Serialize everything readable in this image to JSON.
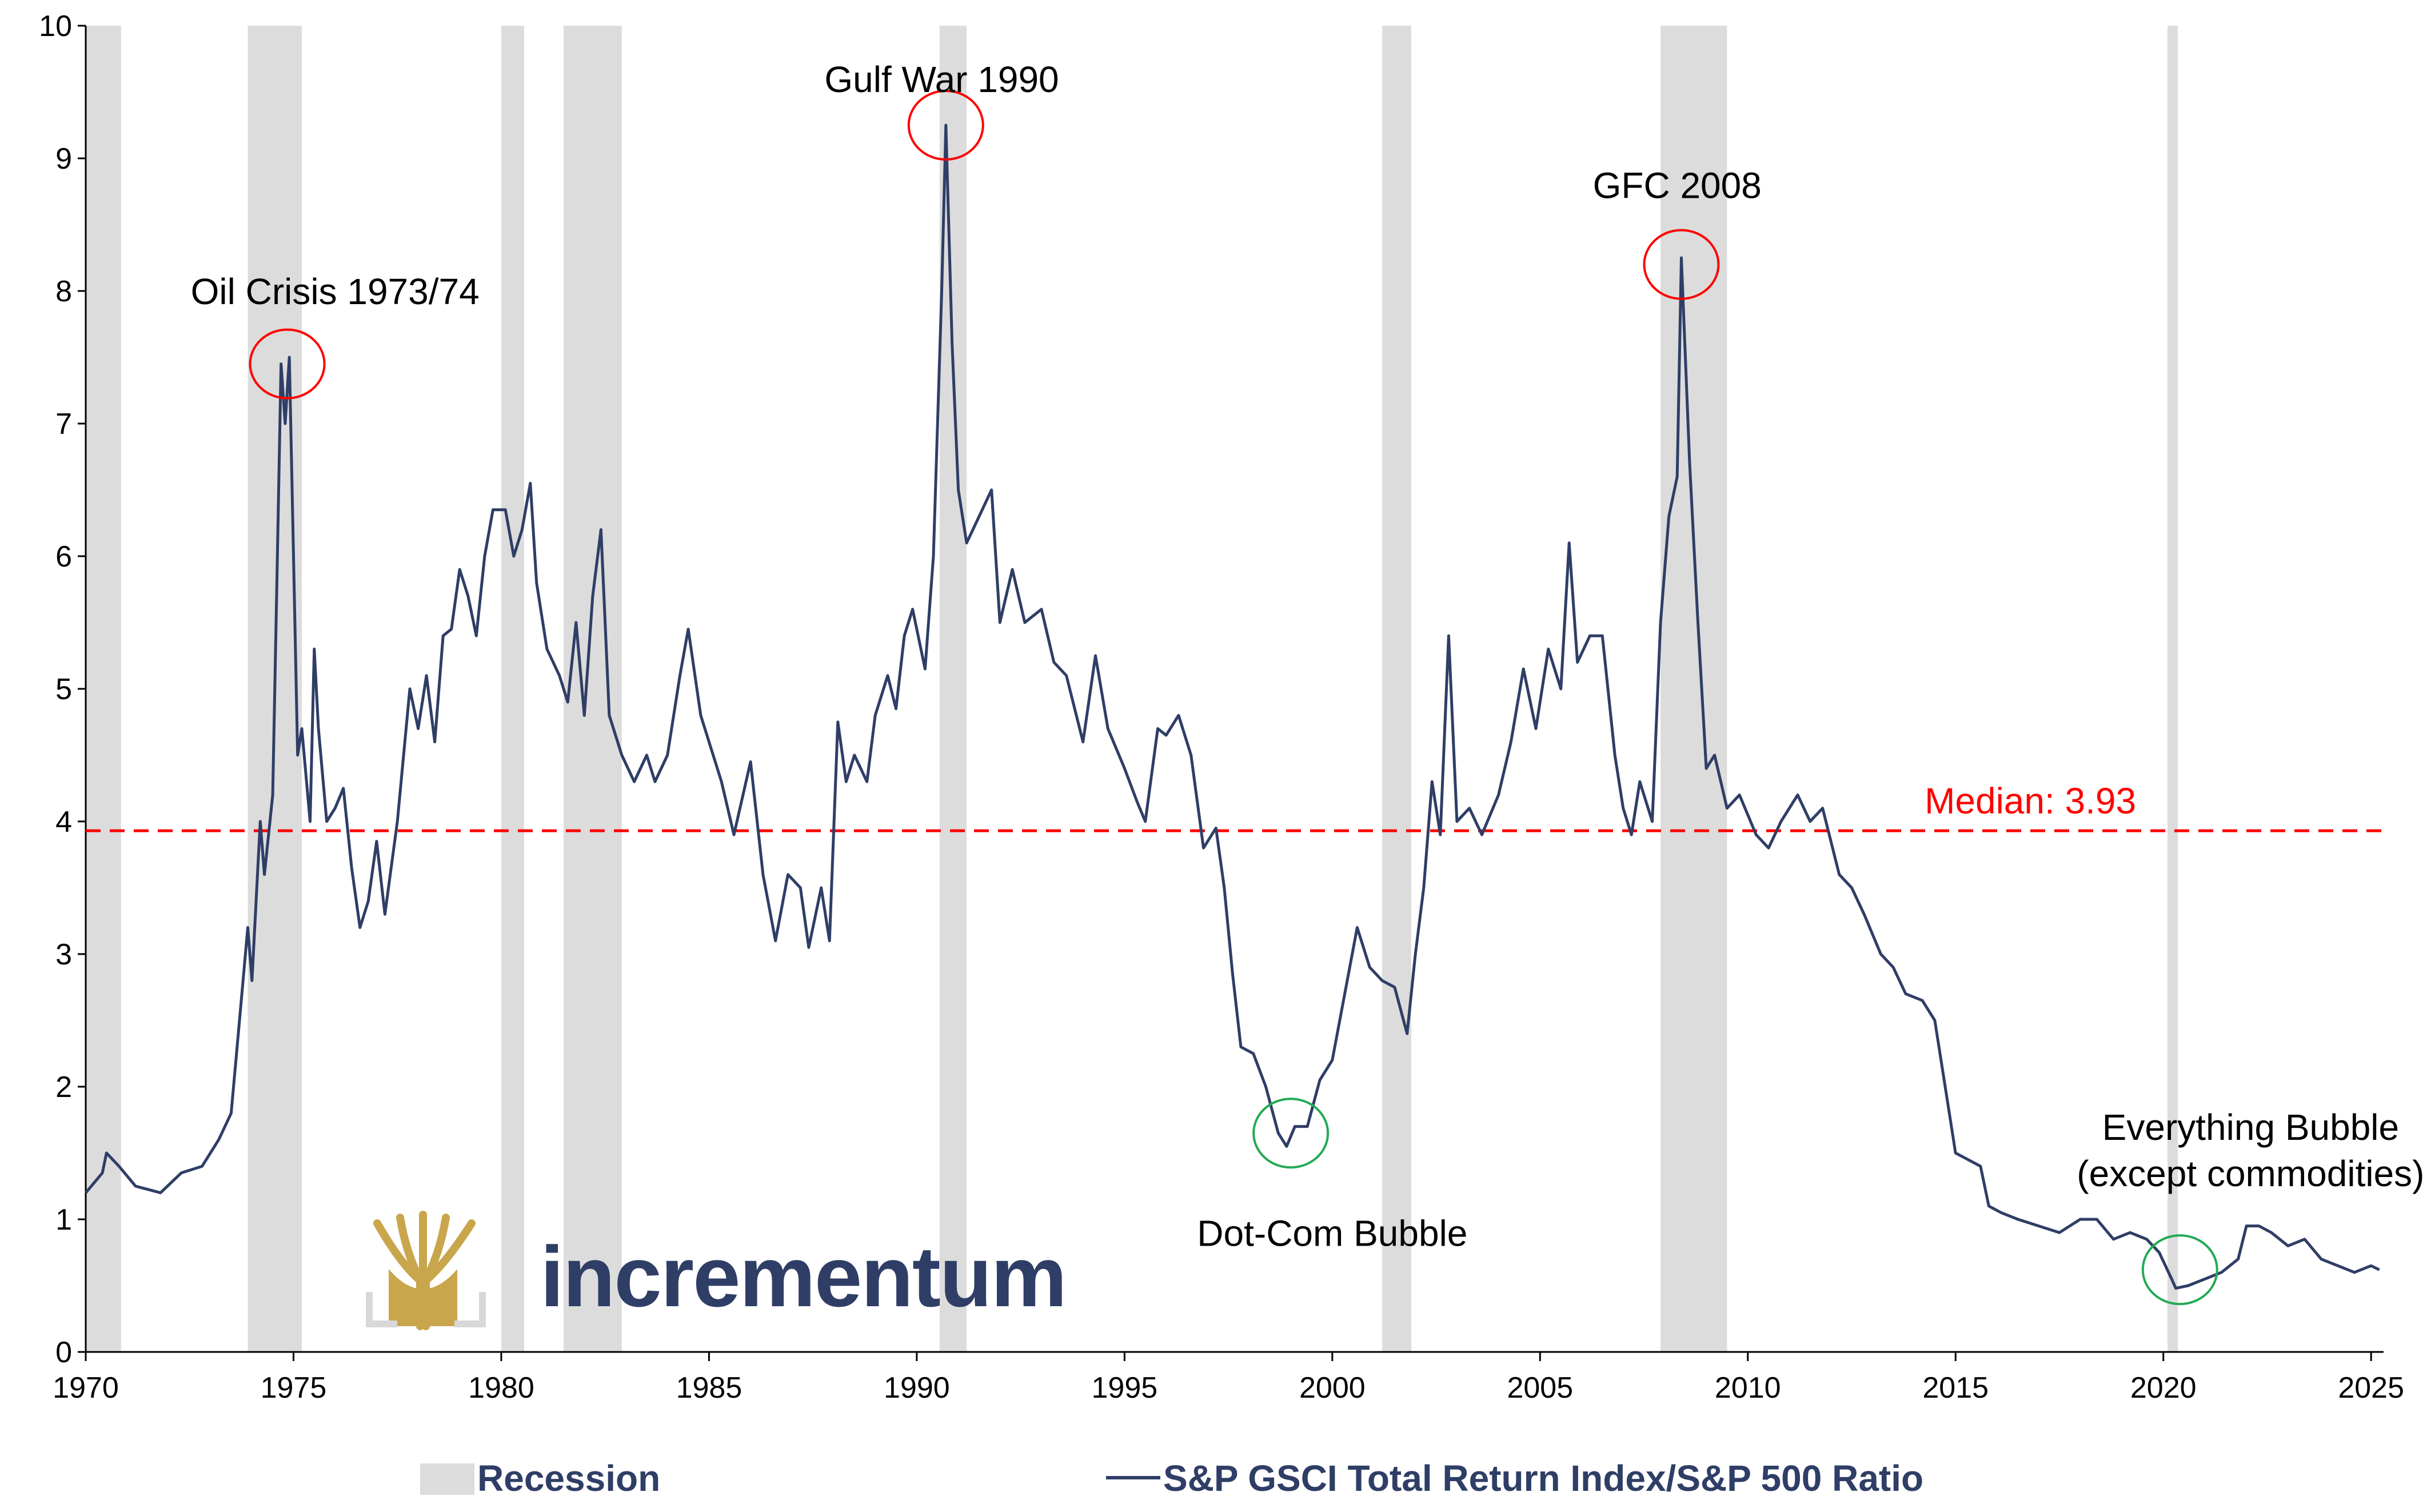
{
  "chart_data": {
    "type": "line",
    "title": "",
    "xlabel": "",
    "ylabel": "",
    "xlim": [
      1970,
      2025.3
    ],
    "ylim": [
      0,
      10
    ],
    "x_ticks": [
      "1970",
      "1975",
      "1980",
      "1985",
      "1990",
      "1995",
      "2000",
      "2005",
      "2010",
      "2015",
      "2020",
      "2025"
    ],
    "y_ticks": [
      "0",
      "1",
      "2",
      "3",
      "4",
      "5",
      "6",
      "7",
      "8",
      "9",
      "10"
    ],
    "grid": false,
    "colors": {
      "line": "#2f3e66",
      "median": "#ff0000",
      "recession": "#dcdcdc",
      "peak_circle": "#ff0000",
      "trough_circle": "#22aa55",
      "logo_gold": "#c9a64b"
    },
    "recessions": [
      [
        1970.0,
        1970.85
      ],
      [
        1973.9,
        1975.2
      ],
      [
        1980.0,
        1980.55
      ],
      [
        1981.5,
        1982.9
      ],
      [
        1990.55,
        1991.2
      ],
      [
        2001.2,
        2001.9
      ],
      [
        2007.9,
        2009.5
      ],
      [
        2020.1,
        2020.35
      ]
    ],
    "series": [
      {
        "name": "S&P GSCI Total Return Index/S&P 500 Ratio",
        "points": [
          [
            1970.0,
            1.2
          ],
          [
            1970.4,
            1.35
          ],
          [
            1970.5,
            1.5
          ],
          [
            1970.8,
            1.4
          ],
          [
            1971.2,
            1.25
          ],
          [
            1971.8,
            1.2
          ],
          [
            1972.3,
            1.35
          ],
          [
            1972.8,
            1.4
          ],
          [
            1973.2,
            1.6
          ],
          [
            1973.5,
            1.8
          ],
          [
            1973.7,
            2.5
          ],
          [
            1973.9,
            3.2
          ],
          [
            1974.0,
            2.8
          ],
          [
            1974.2,
            4.0
          ],
          [
            1974.3,
            3.6
          ],
          [
            1974.5,
            4.2
          ],
          [
            1974.6,
            5.8
          ],
          [
            1974.7,
            7.45
          ],
          [
            1974.8,
            7.0
          ],
          [
            1974.9,
            7.5
          ],
          [
            1975.0,
            6.0
          ],
          [
            1975.1,
            4.5
          ],
          [
            1975.2,
            4.7
          ],
          [
            1975.4,
            4.0
          ],
          [
            1975.5,
            5.3
          ],
          [
            1975.6,
            4.7
          ],
          [
            1975.8,
            4.0
          ],
          [
            1976.0,
            4.1
          ],
          [
            1976.2,
            4.25
          ],
          [
            1976.4,
            3.65
          ],
          [
            1976.6,
            3.2
          ],
          [
            1976.8,
            3.4
          ],
          [
            1977.0,
            3.85
          ],
          [
            1977.2,
            3.3
          ],
          [
            1977.5,
            4.0
          ],
          [
            1977.8,
            5.0
          ],
          [
            1978.0,
            4.7
          ],
          [
            1978.2,
            5.1
          ],
          [
            1978.4,
            4.6
          ],
          [
            1978.6,
            5.4
          ],
          [
            1978.8,
            5.45
          ],
          [
            1979.0,
            5.9
          ],
          [
            1979.2,
            5.7
          ],
          [
            1979.4,
            5.4
          ],
          [
            1979.6,
            6.0
          ],
          [
            1979.8,
            6.35
          ],
          [
            1980.1,
            6.35
          ],
          [
            1980.3,
            6.0
          ],
          [
            1980.5,
            6.2
          ],
          [
            1980.7,
            6.55
          ],
          [
            1980.85,
            5.8
          ],
          [
            1981.1,
            5.3
          ],
          [
            1981.4,
            5.1
          ],
          [
            1981.6,
            4.9
          ],
          [
            1981.8,
            5.5
          ],
          [
            1982.0,
            4.8
          ],
          [
            1982.2,
            5.7
          ],
          [
            1982.4,
            6.2
          ],
          [
            1982.6,
            4.8
          ],
          [
            1982.9,
            4.5
          ],
          [
            1983.2,
            4.3
          ],
          [
            1983.5,
            4.5
          ],
          [
            1983.7,
            4.3
          ],
          [
            1984.0,
            4.5
          ],
          [
            1984.3,
            5.1
          ],
          [
            1984.5,
            5.45
          ],
          [
            1984.8,
            4.8
          ],
          [
            1985.0,
            4.6
          ],
          [
            1985.3,
            4.3
          ],
          [
            1985.6,
            3.9
          ],
          [
            1986.0,
            4.45
          ],
          [
            1986.3,
            3.6
          ],
          [
            1986.6,
            3.1
          ],
          [
            1986.9,
            3.6
          ],
          [
            1987.2,
            3.5
          ],
          [
            1987.4,
            3.05
          ],
          [
            1987.7,
            3.5
          ],
          [
            1987.9,
            3.1
          ],
          [
            1988.1,
            4.75
          ],
          [
            1988.3,
            4.3
          ],
          [
            1988.5,
            4.5
          ],
          [
            1988.8,
            4.3
          ],
          [
            1989.0,
            4.8
          ],
          [
            1989.3,
            5.1
          ],
          [
            1989.5,
            4.85
          ],
          [
            1989.7,
            5.4
          ],
          [
            1989.9,
            5.6
          ],
          [
            1990.2,
            5.15
          ],
          [
            1990.4,
            6.0
          ],
          [
            1990.6,
            8.0
          ],
          [
            1990.7,
            9.25
          ],
          [
            1990.85,
            7.6
          ],
          [
            1991.0,
            6.5
          ],
          [
            1991.2,
            6.1
          ],
          [
            1991.5,
            6.3
          ],
          [
            1991.8,
            6.5
          ],
          [
            1992.0,
            5.5
          ],
          [
            1992.3,
            5.9
          ],
          [
            1992.6,
            5.5
          ],
          [
            1993.0,
            5.6
          ],
          [
            1993.3,
            5.2
          ],
          [
            1993.6,
            5.1
          ],
          [
            1994.0,
            4.6
          ],
          [
            1994.3,
            5.25
          ],
          [
            1994.6,
            4.7
          ],
          [
            1995.0,
            4.4
          ],
          [
            1995.3,
            4.15
          ],
          [
            1995.5,
            4.0
          ],
          [
            1995.8,
            4.7
          ],
          [
            1996.0,
            4.65
          ],
          [
            1996.3,
            4.8
          ],
          [
            1996.6,
            4.5
          ],
          [
            1996.9,
            3.8
          ],
          [
            1997.2,
            3.95
          ],
          [
            1997.4,
            3.5
          ],
          [
            1997.6,
            2.85
          ],
          [
            1997.8,
            2.3
          ],
          [
            1998.1,
            2.25
          ],
          [
            1998.4,
            2.0
          ],
          [
            1998.7,
            1.65
          ],
          [
            1998.9,
            1.55
          ],
          [
            1999.1,
            1.7
          ],
          [
            1999.4,
            1.7
          ],
          [
            1999.7,
            2.05
          ],
          [
            2000.0,
            2.2
          ],
          [
            2000.3,
            2.7
          ],
          [
            2000.6,
            3.2
          ],
          [
            2000.9,
            2.9
          ],
          [
            2001.2,
            2.8
          ],
          [
            2001.5,
            2.75
          ],
          [
            2001.8,
            2.4
          ],
          [
            2002.0,
            3.0
          ],
          [
            2002.2,
            3.5
          ],
          [
            2002.4,
            4.3
          ],
          [
            2002.6,
            3.9
          ],
          [
            2002.8,
            5.4
          ],
          [
            2003.0,
            4.0
          ],
          [
            2003.3,
            4.1
          ],
          [
            2003.6,
            3.9
          ],
          [
            2004.0,
            4.2
          ],
          [
            2004.3,
            4.6
          ],
          [
            2004.6,
            5.15
          ],
          [
            2004.9,
            4.7
          ],
          [
            2005.2,
            5.3
          ],
          [
            2005.5,
            5.0
          ],
          [
            2005.7,
            6.1
          ],
          [
            2005.9,
            5.2
          ],
          [
            2006.2,
            5.4
          ],
          [
            2006.5,
            5.4
          ],
          [
            2006.8,
            4.5
          ],
          [
            2007.0,
            4.1
          ],
          [
            2007.2,
            3.9
          ],
          [
            2007.4,
            4.3
          ],
          [
            2007.7,
            4.0
          ],
          [
            2007.9,
            5.5
          ],
          [
            2008.1,
            6.3
          ],
          [
            2008.3,
            6.6
          ],
          [
            2008.4,
            8.25
          ],
          [
            2008.6,
            6.7
          ],
          [
            2008.8,
            5.5
          ],
          [
            2009.0,
            4.4
          ],
          [
            2009.2,
            4.5
          ],
          [
            2009.5,
            4.1
          ],
          [
            2009.8,
            4.2
          ],
          [
            2010.2,
            3.9
          ],
          [
            2010.5,
            3.8
          ],
          [
            2010.8,
            4.0
          ],
          [
            2011.2,
            4.2
          ],
          [
            2011.5,
            4.0
          ],
          [
            2011.8,
            4.1
          ],
          [
            2012.2,
            3.6
          ],
          [
            2012.5,
            3.5
          ],
          [
            2012.8,
            3.3
          ],
          [
            2013.2,
            3.0
          ],
          [
            2013.5,
            2.9
          ],
          [
            2013.8,
            2.7
          ],
          [
            2014.2,
            2.65
          ],
          [
            2014.5,
            2.5
          ],
          [
            2014.8,
            1.9
          ],
          [
            2015.0,
            1.5
          ],
          [
            2015.3,
            1.45
          ],
          [
            2015.6,
            1.4
          ],
          [
            2015.8,
            1.1
          ],
          [
            2016.1,
            1.05
          ],
          [
            2016.5,
            1.0
          ],
          [
            2017.0,
            0.95
          ],
          [
            2017.5,
            0.9
          ],
          [
            2018.0,
            1.0
          ],
          [
            2018.4,
            1.0
          ],
          [
            2018.8,
            0.85
          ],
          [
            2019.2,
            0.9
          ],
          [
            2019.6,
            0.85
          ],
          [
            2019.9,
            0.75
          ],
          [
            2020.2,
            0.55
          ],
          [
            2020.3,
            0.48
          ],
          [
            2020.6,
            0.5
          ],
          [
            2021.0,
            0.55
          ],
          [
            2021.4,
            0.6
          ],
          [
            2021.8,
            0.7
          ],
          [
            2022.0,
            0.95
          ],
          [
            2022.3,
            0.95
          ],
          [
            2022.6,
            0.9
          ],
          [
            2023.0,
            0.8
          ],
          [
            2023.4,
            0.85
          ],
          [
            2023.8,
            0.7
          ],
          [
            2024.2,
            0.65
          ],
          [
            2024.6,
            0.6
          ],
          [
            2025.0,
            0.65
          ],
          [
            2025.2,
            0.62
          ]
        ]
      }
    ],
    "median": {
      "value": 3.93,
      "label": "Median: 3.93"
    },
    "annotations": [
      {
        "text": "Oil Crisis 1973/74",
        "x": 1976.0,
        "y": 7.9,
        "anchor": "middle"
      },
      {
        "text": "Gulf War 1990",
        "x": 1990.6,
        "y": 9.5,
        "anchor": "middle"
      },
      {
        "text": "GFC 2008",
        "x": 2008.3,
        "y": 8.7,
        "anchor": "middle"
      },
      {
        "text": "Dot-Com Bubble",
        "x": 2000.0,
        "y": 0.8,
        "anchor": "middle"
      },
      {
        "text": "Everything Bubble",
        "x": 2022.1,
        "y": 1.6,
        "anchor": "middle"
      },
      {
        "text": "(except commodities)",
        "x": 2022.1,
        "y": 1.25,
        "anchor": "middle"
      }
    ],
    "peaks": [
      {
        "x": 1974.85,
        "y": 7.45
      },
      {
        "x": 1990.7,
        "y": 9.25
      },
      {
        "x": 2008.4,
        "y": 8.2
      }
    ],
    "troughs": [
      {
        "x": 1999.0,
        "y": 1.65
      },
      {
        "x": 2020.4,
        "y": 0.62
      }
    ],
    "legend": {
      "position": "bottom",
      "recession_label": "Recession",
      "series_label": "S&P GSCI Total Return Index/S&P 500 Ratio"
    },
    "logo_text": "incrementum"
  }
}
